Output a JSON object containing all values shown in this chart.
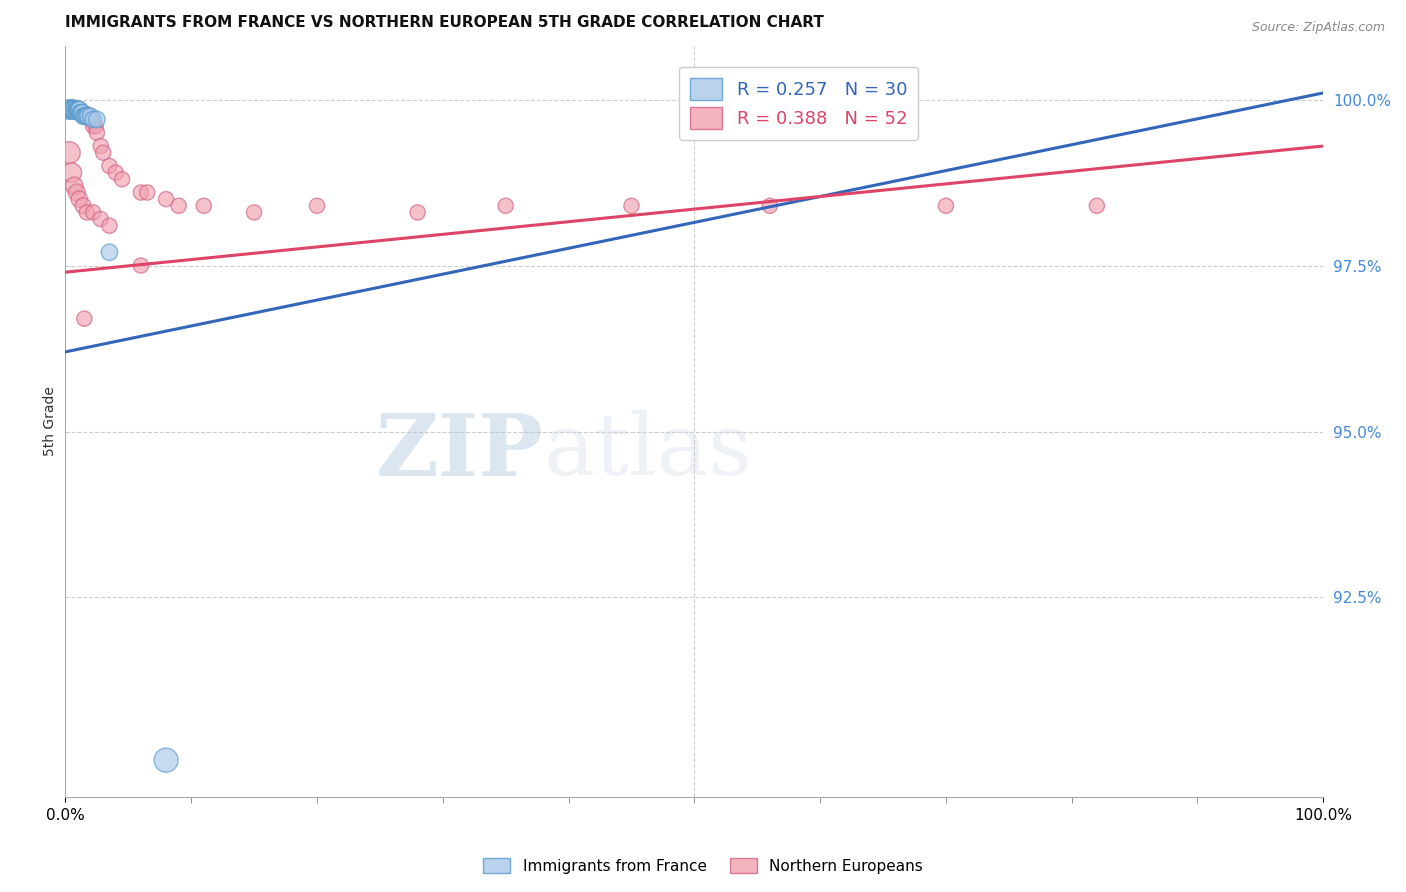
{
  "title": "IMMIGRANTS FROM FRANCE VS NORTHERN EUROPEAN 5TH GRADE CORRELATION CHART",
  "source": "Source: ZipAtlas.com",
  "ylabel": "5th Grade",
  "ylabel_right_ticks": [
    "100.0%",
    "97.5%",
    "95.0%",
    "92.5%"
  ],
  "ylabel_right_vals": [
    1.0,
    0.975,
    0.95,
    0.925
  ],
  "xmin": 0.0,
  "xmax": 1.0,
  "ymin": 0.895,
  "ymax": 1.008,
  "watermark_zip": "ZIP",
  "watermark_atlas": "atlas",
  "legend_blue_r": "0.257",
  "legend_blue_n": "30",
  "legend_pink_r": "0.388",
  "legend_pink_n": "52",
  "blue_fill": "#a8c8e8",
  "blue_edge": "#5599cc",
  "pink_fill": "#f0a0b0",
  "pink_edge": "#d06080",
  "blue_line_color": "#3366bb",
  "pink_line_color": "#dd4466",
  "blue_line_start_y": 0.962,
  "blue_line_end_y": 1.001,
  "pink_line_start_y": 0.974,
  "pink_line_end_y": 0.993,
  "blue_x": [
    0.003,
    0.004,
    0.005,
    0.005,
    0.006,
    0.006,
    0.007,
    0.007,
    0.008,
    0.008,
    0.009,
    0.009,
    0.01,
    0.01,
    0.011,
    0.011,
    0.012,
    0.012,
    0.013,
    0.013,
    0.014,
    0.015,
    0.016,
    0.017,
    0.018,
    0.02,
    0.022,
    0.025,
    0.035,
    0.08
  ],
  "blue_y": [
    0.9985,
    0.9985,
    0.9985,
    0.9985,
    0.9985,
    0.9985,
    0.9985,
    0.9985,
    0.9985,
    0.9985,
    0.9985,
    0.9985,
    0.9985,
    0.9985,
    0.9985,
    0.9985,
    0.998,
    0.998,
    0.998,
    0.998,
    0.9975,
    0.9975,
    0.9975,
    0.9975,
    0.9975,
    0.9975,
    0.997,
    0.997,
    0.977,
    0.9005
  ],
  "blue_sizes": [
    200,
    160,
    150,
    200,
    180,
    160,
    140,
    180,
    140,
    160,
    140,
    140,
    140,
    140,
    140,
    140,
    140,
    140,
    140,
    140,
    140,
    140,
    140,
    140,
    140,
    140,
    140,
    140,
    140,
    300
  ],
  "pink_x": [
    0.003,
    0.004,
    0.005,
    0.006,
    0.007,
    0.008,
    0.009,
    0.01,
    0.011,
    0.012,
    0.013,
    0.014,
    0.015,
    0.016,
    0.017,
    0.018,
    0.019,
    0.02,
    0.021,
    0.022,
    0.024,
    0.025,
    0.028,
    0.03,
    0.035,
    0.04,
    0.045,
    0.06,
    0.065,
    0.08,
    0.09,
    0.11,
    0.15,
    0.2,
    0.28,
    0.35,
    0.45,
    0.56,
    0.7,
    0.82,
    0.003,
    0.005,
    0.007,
    0.009,
    0.011,
    0.014,
    0.017,
    0.022,
    0.028,
    0.035,
    0.015,
    0.06
  ],
  "pink_y": [
    0.9985,
    0.9985,
    0.9985,
    0.9985,
    0.9985,
    0.9985,
    0.9985,
    0.9985,
    0.998,
    0.998,
    0.998,
    0.998,
    0.998,
    0.9975,
    0.9975,
    0.9975,
    0.9975,
    0.997,
    0.997,
    0.996,
    0.996,
    0.995,
    0.993,
    0.992,
    0.99,
    0.989,
    0.988,
    0.986,
    0.986,
    0.985,
    0.984,
    0.984,
    0.983,
    0.984,
    0.983,
    0.984,
    0.984,
    0.984,
    0.984,
    0.984,
    0.992,
    0.989,
    0.987,
    0.986,
    0.985,
    0.984,
    0.983,
    0.983,
    0.982,
    0.981,
    0.967,
    0.975
  ],
  "pink_sizes": [
    140,
    120,
    140,
    120,
    120,
    120,
    120,
    120,
    120,
    120,
    120,
    120,
    120,
    120,
    120,
    120,
    120,
    120,
    120,
    120,
    120,
    120,
    120,
    120,
    120,
    120,
    120,
    120,
    120,
    120,
    120,
    120,
    120,
    120,
    120,
    120,
    120,
    120,
    120,
    120,
    250,
    200,
    160,
    150,
    140,
    130,
    120,
    120,
    120,
    120,
    120,
    120
  ]
}
